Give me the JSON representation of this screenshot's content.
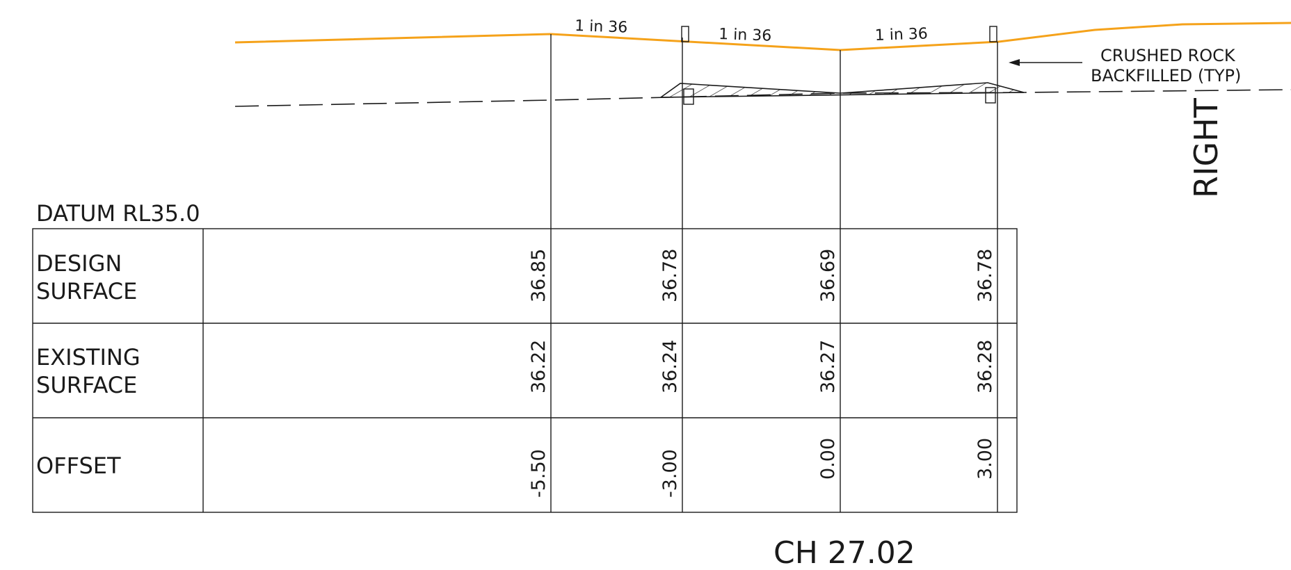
{
  "annotations": {
    "grade_left": "1 in 36",
    "grade_mid": "1 in 36",
    "grade_right": "1 in 36",
    "crushed_rock_line1": "CRUSHED ROCK",
    "crushed_rock_line2": "BACKFILLED (TYP)",
    "side_label": "RIGHT",
    "datum": "DATUM RL35.0",
    "chainage": "CH 27.02"
  },
  "table": {
    "rows": [
      {
        "label_line1": "DESIGN",
        "label_line2": "SURFACE",
        "values": [
          "36.85",
          "36.78",
          "36.69",
          "36.78"
        ]
      },
      {
        "label_line1": "EXISTING",
        "label_line2": "SURFACE",
        "values": [
          "36.22",
          "36.24",
          "36.27",
          "36.28"
        ]
      },
      {
        "label_line1": "OFFSET",
        "label_line2": "",
        "values": [
          "-5.50",
          "-3.00",
          "0.00",
          "3.00"
        ]
      }
    ]
  },
  "colors": {
    "design_surface": "#f5a21a",
    "linework": "#1a1a1a",
    "background": "#ffffff"
  }
}
